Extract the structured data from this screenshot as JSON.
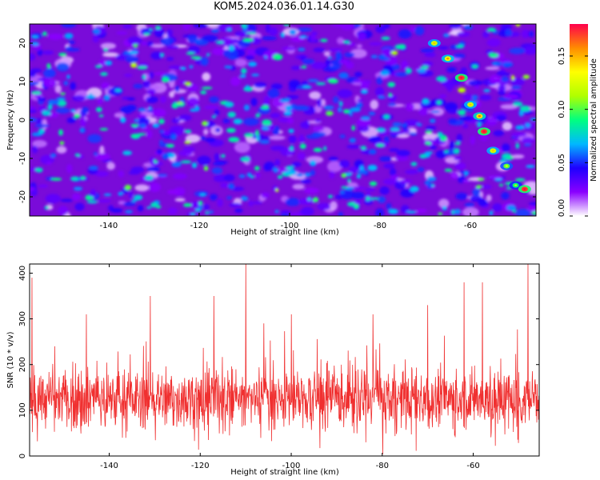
{
  "title": "KOM5.2024.036.01.14.G30",
  "chart_data": [
    {
      "type": "heatmap",
      "xlabel": "Height of straight line (km)",
      "ylabel": "Frequency (Hz)",
      "xlim": [
        -157.5,
        -45.5
      ],
      "ylim": [
        -25,
        25
      ],
      "xticks": [
        -140,
        -120,
        -100,
        -80,
        -60
      ],
      "yticks": [
        -20,
        -10,
        0,
        10,
        20
      ],
      "colorbar": {
        "label": "Normalized spectral amplitude",
        "range": [
          0,
          0.18
        ],
        "ticks": [
          "0.00",
          "0.05",
          "0.10",
          "0.15"
        ],
        "tick_values": [
          0,
          0.05,
          0.1,
          0.15
        ],
        "colormap": [
          "#ffffff",
          "#8a00ff",
          "#1e00ff",
          "#00b8ff",
          "#00ff80",
          "#b0ff00",
          "#ffff00",
          "#ff8c00",
          "#ff004c"
        ]
      },
      "background_color": "#7a0bd9",
      "features": [
        {
          "x": -68,
          "y": 20,
          "value": 0.12
        },
        {
          "x": -65,
          "y": 16,
          "value": 0.13
        },
        {
          "x": -62,
          "y": 11,
          "value": 0.17
        },
        {
          "x": -60,
          "y": 4,
          "value": 0.12
        },
        {
          "x": -58,
          "y": 1,
          "value": 0.14
        },
        {
          "x": -57,
          "y": -3,
          "value": 0.17
        },
        {
          "x": -55,
          "y": -8,
          "value": 0.12
        },
        {
          "x": -52,
          "y": -12,
          "value": 0.1
        },
        {
          "x": -50,
          "y": -17,
          "value": 0.09
        },
        {
          "x": -48,
          "y": -18,
          "value": 0.17
        }
      ]
    },
    {
      "type": "line",
      "xlabel": "Height of straight line (km)",
      "ylabel": "SNR (10 * v/v)",
      "xlim": [
        -157.5,
        -45.5
      ],
      "ylim": [
        0,
        420
      ],
      "xticks": [
        -140,
        -120,
        -100,
        -80,
        -60
      ],
      "yticks": [
        0,
        100,
        200,
        300,
        400
      ],
      "color": "#f03030",
      "baseline_mean": 125,
      "spread": 45,
      "peaks": [
        {
          "x": -157,
          "y": 390
        },
        {
          "x": -152,
          "y": 240
        },
        {
          "x": -145,
          "y": 310
        },
        {
          "x": -131,
          "y": 350
        },
        {
          "x": -117,
          "y": 350
        },
        {
          "x": -110,
          "y": 420
        },
        {
          "x": -106,
          "y": 290
        },
        {
          "x": -100,
          "y": 310
        },
        {
          "x": -82,
          "y": 310
        },
        {
          "x": -70,
          "y": 330
        },
        {
          "x": -62,
          "y": 380
        },
        {
          "x": -58,
          "y": 380
        },
        {
          "x": -48,
          "y": 420
        }
      ]
    }
  ]
}
